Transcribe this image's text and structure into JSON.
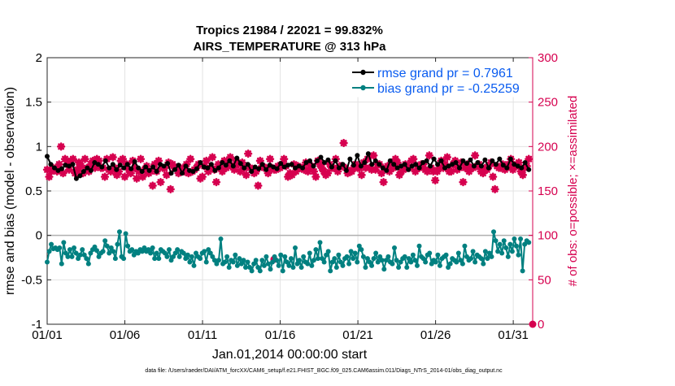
{
  "chart_data": {
    "type": "line",
    "title_line1": "Tropics 21984 / 22021 = 99.832%",
    "title_line2": "AIRS_TEMPERATURE @ 313 hPa",
    "xlabel": "Jan.01,2014 00:00:00 start",
    "ylabel_left": "rmse and bias (model - observation)",
    "ylabel_right": "# of obs: o=possible; ×=assimilated",
    "footnote": "data file: /Users/raeder/DAI/ATM_forcXX/CAM6_setup/f.e21.FHIST_BGC.f09_025.CAM6assim.011/Diags_NTrS_2014-01/obs_diag_output.nc",
    "xlim": [
      0,
      31.25
    ],
    "ylim_left": [
      -1,
      2
    ],
    "ylim_right": [
      0,
      300
    ],
    "x_ticks": [
      0,
      5,
      10,
      15,
      20,
      25,
      30
    ],
    "x_tick_labels": [
      "01/01",
      "01/06",
      "01/11",
      "01/16",
      "01/21",
      "01/26",
      "01/31"
    ],
    "y_left_ticks": [
      -1,
      -0.5,
      0,
      0.5,
      1,
      1.5,
      2
    ],
    "y_left_tick_labels": [
      "-1",
      "-0.5",
      "0",
      "0.5",
      "1",
      "1.5",
      "2"
    ],
    "y_right_ticks": [
      0,
      50,
      100,
      150,
      200,
      250,
      300
    ],
    "y_right_tick_labels": [
      "0",
      "50",
      "100",
      "150",
      "200",
      "250",
      "300"
    ],
    "legend": [
      {
        "name": "rmse grand pr = 0.7961",
        "color": "#000000"
      },
      {
        "name": "bias grand pr = -0.25259",
        "color": "#008080"
      }
    ],
    "legend_position": "top-right",
    "grid": true,
    "colors": {
      "rmse": "#000000",
      "bias": "#008080",
      "obs": "#d6004f",
      "zero_line": "#b0b0b0"
    },
    "x_step": 0.25,
    "rmse_values": [
      0.89,
      0.8,
      0.76,
      0.73,
      0.75,
      0.79,
      0.78,
      0.8,
      0.64,
      0.67,
      0.72,
      0.76,
      0.73,
      0.82,
      0.8,
      0.77,
      0.84,
      0.76,
      0.8,
      0.74,
      0.79,
      0.76,
      0.8,
      0.75,
      0.83,
      0.76,
      0.72,
      0.77,
      0.73,
      0.77,
      0.72,
      0.8,
      0.78,
      0.81,
      0.7,
      0.74,
      0.79,
      0.7,
      0.78,
      0.73,
      0.72,
      0.75,
      0.82,
      0.77,
      0.76,
      0.8,
      0.73,
      0.76,
      0.82,
      0.79,
      0.84,
      0.78,
      0.87,
      0.81,
      0.76,
      0.8,
      0.72,
      0.77,
      0.75,
      0.8,
      0.74,
      0.79,
      0.77,
      0.75,
      0.81,
      0.77,
      0.79,
      0.8,
      0.76,
      0.78,
      0.76,
      0.82,
      0.84,
      0.78,
      0.84,
      0.88,
      0.82,
      0.85,
      0.77,
      0.84,
      0.76,
      0.8,
      0.73,
      0.86,
      0.79,
      0.9,
      0.78,
      0.82,
      0.92,
      0.8,
      0.84,
      0.8,
      0.76,
      0.73,
      0.84,
      0.8,
      0.76,
      0.78,
      0.8,
      0.74,
      0.78,
      0.8,
      0.76,
      0.82,
      0.84,
      0.78,
      0.86,
      0.8,
      0.84,
      0.76,
      0.78,
      0.8,
      0.82,
      0.76,
      0.84,
      0.81,
      0.85,
      0.78,
      0.82,
      0.78,
      0.85,
      0.76,
      0.84,
      0.8,
      0.86,
      0.79,
      0.76,
      0.86,
      0.8,
      0.78,
      0.76,
      0.82,
      0.74
    ],
    "bias_values": [
      -0.3,
      -0.18,
      -0.1,
      -0.15,
      -0.14,
      -0.16,
      -0.14,
      -0.32,
      -0.08,
      -0.2,
      -0.24,
      -0.16,
      -0.24,
      -0.14,
      -0.2,
      -0.26,
      -0.22,
      -0.16,
      -0.22,
      -0.26,
      -0.32,
      -0.2,
      -0.16,
      -0.13,
      -0.17,
      -0.24,
      -0.2,
      -0.18,
      -0.06,
      -0.12,
      -0.2,
      -0.14,
      -0.18,
      -0.26,
      -0.1,
      0.04,
      -0.24,
      -0.26,
      0.02,
      -0.12,
      -0.18,
      -0.16,
      -0.22,
      -0.18,
      -0.2,
      -0.16,
      -0.18,
      -0.14,
      -0.18,
      -0.16,
      -0.2,
      -0.14,
      -0.26,
      -0.2,
      -0.26,
      -0.16,
      -0.18,
      -0.2,
      -0.24,
      -0.16,
      -0.28,
      -0.24,
      -0.2,
      -0.16,
      -0.24,
      -0.18,
      -0.2,
      -0.26,
      -0.22,
      -0.3,
      -0.24,
      -0.34,
      -0.2,
      -0.24,
      -0.26,
      -0.2,
      -0.18,
      -0.3,
      -0.16,
      -0.2,
      -0.24,
      -0.28,
      -0.32,
      -0.28,
      -0.04,
      -0.32,
      -0.3,
      -0.24,
      -0.36,
      -0.28,
      -0.3,
      -0.22,
      -0.34,
      -0.26,
      -0.32,
      -0.28,
      -0.36,
      -0.3,
      -0.36,
      -0.4,
      -0.32,
      -0.28,
      -0.36,
      -0.4,
      -0.28,
      -0.34,
      -0.24,
      -0.32,
      -0.38,
      -0.3,
      -0.24,
      -0.28,
      -0.34,
      -0.22,
      -0.4,
      -0.24,
      -0.3,
      -0.34,
      -0.26,
      -0.36,
      -0.14,
      -0.32,
      -0.28,
      -0.36,
      -0.24,
      -0.3,
      -0.32,
      -0.2,
      -0.34,
      -0.28,
      -0.16,
      -0.26,
      -0.08,
      -0.26,
      -0.3,
      -0.22,
      -0.18,
      -0.4,
      -0.3,
      -0.26,
      -0.36,
      -0.22,
      -0.3,
      -0.34,
      -0.26,
      -0.24,
      -0.32,
      -0.18,
      -0.26,
      -0.2,
      -0.3,
      -0.12,
      -0.16,
      -0.24,
      -0.36,
      -0.26,
      -0.3,
      -0.34,
      -0.26,
      -0.2,
      -0.3,
      -0.24,
      -0.28,
      -0.38,
      -0.28,
      -0.24,
      -0.3,
      -0.32,
      -0.14,
      -0.28,
      -0.36,
      -0.3,
      -0.26,
      -0.24,
      -0.36,
      -0.26,
      -0.3,
      -0.22,
      -0.28,
      -0.34,
      -0.12,
      -0.24,
      -0.26,
      -0.3,
      -0.22,
      -0.2,
      -0.32,
      -0.28,
      -0.3,
      -0.22,
      -0.34,
      -0.26,
      -0.24,
      -0.22,
      -0.36,
      -0.32,
      -0.26,
      -0.28,
      -0.3,
      -0.2,
      -0.28,
      -0.32,
      -0.12,
      -0.24,
      -0.28,
      -0.26,
      -0.18,
      -0.3,
      -0.22,
      -0.24,
      -0.26,
      -0.32,
      -0.18,
      -0.26,
      -0.2,
      -0.24,
      0.04,
      -0.06,
      -0.18,
      -0.1,
      -0.2,
      -0.06,
      -0.14,
      -0.24,
      -0.1,
      -0.18,
      -0.04,
      -0.12,
      -0.22,
      -0.04,
      -0.4,
      -0.1,
      -0.06,
      -0.08
    ],
    "obs_values": [
      174,
      166,
      172,
      176,
      174,
      172,
      180,
      200,
      170,
      186,
      180,
      174,
      184,
      186,
      170,
      174,
      182,
      178,
      170,
      186,
      176,
      172,
      180,
      184,
      176,
      186,
      184,
      176,
      176,
      166,
      186,
      174,
      172,
      188,
      176,
      168,
      172,
      184,
      186,
      166,
      180,
      174,
      170,
      184,
      176,
      164,
      172,
      186,
      166,
      174,
      178,
      170,
      172,
      156,
      180,
      172,
      184,
      160,
      176,
      176,
      168,
      182,
      152,
      180,
      176,
      176,
      170,
      176,
      174,
      172,
      180,
      170,
      186,
      172,
      174,
      176,
      180,
      164,
      166,
      178,
      184,
      172,
      176,
      188,
      174,
      160,
      180,
      176,
      172,
      184,
      176,
      180,
      188,
      178,
      174,
      184,
      180,
      172,
      182,
      176,
      168,
      192,
      176,
      174,
      170,
      172,
      156,
      184,
      178,
      176,
      176,
      170,
      186,
      176,
      174,
      174,
      178,
      176,
      180,
      186,
      178,
      166,
      170,
      168,
      180,
      172,
      178,
      176,
      176,
      174,
      182,
      172,
      176,
      178,
      172,
      166,
      184,
      180,
      176,
      172,
      168,
      170,
      180,
      176,
      176,
      186,
      172,
      178,
      178,
      204,
      176,
      170,
      172,
      172,
      176,
      180,
      176,
      176,
      168,
      182,
      176,
      186,
      176,
      174,
      190,
      174,
      180,
      180,
      170,
      160,
      176,
      178,
      172,
      178,
      176,
      186,
      182,
      168,
      172,
      174,
      180,
      176,
      176,
      184,
      186,
      172,
      178,
      176,
      180,
      180,
      174,
      172,
      190,
      176,
      172,
      162,
      172,
      176,
      184,
      176,
      180,
      188,
      172,
      172,
      180,
      184,
      174,
      176,
      182,
      160,
      176,
      180,
      172,
      176,
      176,
      190,
      178,
      180,
      172,
      170,
      176,
      174,
      178,
      182,
      166,
      152,
      178,
      176,
      176,
      180,
      174,
      176,
      180,
      186,
      174,
      178,
      180,
      182,
      172,
      168,
      176,
      178,
      186
    ],
    "obs_markers": [
      {
        "x": 14.6,
        "value": 73
      },
      {
        "x": 31.25,
        "value": 0
      }
    ]
  }
}
